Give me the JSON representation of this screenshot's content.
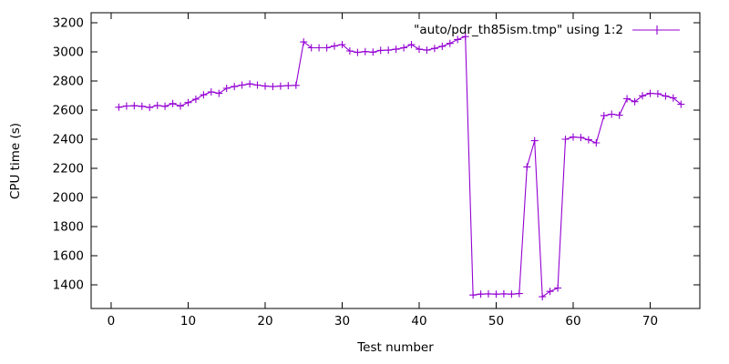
{
  "figure": {
    "background": "#ffffff",
    "border_color": "#000000",
    "text_color": "#000000"
  },
  "chart_data": {
    "type": "line",
    "title": "",
    "xlabel": "Test number",
    "ylabel": "CPU time (s)",
    "legend": {
      "label": "\"auto/pdr_th85ism.tmp\" using 1:2",
      "position": "top-right",
      "marker": "plus"
    },
    "series_color": "#9400d3",
    "grid": false,
    "xlim": [
      -2.6,
      76.45
    ],
    "ylim": [
      1237.5,
      3268.75
    ],
    "xticks": [
      0,
      10,
      20,
      30,
      40,
      50,
      60,
      70
    ],
    "yticks": [
      1400,
      1600,
      1800,
      2000,
      2200,
      2400,
      2600,
      2800,
      3000,
      3200
    ],
    "x": [
      1,
      2,
      3,
      4,
      5,
      6,
      7,
      8,
      9,
      10,
      11,
      12,
      13,
      14,
      15,
      16,
      17,
      18,
      19,
      20,
      21,
      22,
      23,
      24,
      25,
      26,
      27,
      28,
      29,
      30,
      31,
      32,
      33,
      34,
      35,
      36,
      37,
      38,
      39,
      40,
      41,
      42,
      43,
      44,
      45,
      46,
      47,
      48,
      49,
      50,
      51,
      52,
      53,
      54,
      55,
      56,
      57,
      58,
      59,
      60,
      61,
      62,
      63,
      64,
      65,
      66,
      67,
      68,
      69,
      70,
      71,
      72,
      73,
      74
    ],
    "y": [
      2620,
      2628,
      2630,
      2626,
      2618,
      2632,
      2626,
      2645,
      2628,
      2652,
      2675,
      2705,
      2725,
      2715,
      2750,
      2762,
      2772,
      2780,
      2772,
      2765,
      2762,
      2765,
      2768,
      2770,
      3068,
      3028,
      3028,
      3028,
      3040,
      3050,
      3006,
      2996,
      3002,
      2998,
      3010,
      3012,
      3018,
      3028,
      3050,
      3018,
      3012,
      3024,
      3038,
      3058,
      3085,
      3105,
      1330,
      1336,
      1338,
      1336,
      1338,
      1336,
      1340,
      2210,
      2390,
      1318,
      1355,
      1378,
      2400,
      2415,
      2412,
      2396,
      2375,
      2562,
      2572,
      2565,
      2678,
      2658,
      2698,
      2715,
      2712,
      2696,
      2684,
      2640
    ]
  }
}
